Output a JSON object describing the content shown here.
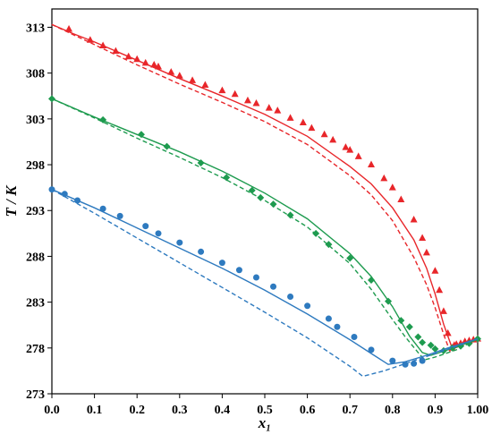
{
  "chart_data": {
    "type": "line",
    "title": "",
    "xlabel": "x₁",
    "ylabel": "T / K",
    "xlim": [
      0.0,
      1.0
    ],
    "ylim": [
      273,
      315
    ],
    "xticks": [
      "0.0",
      "0.1",
      "0.2",
      "0.3",
      "0.4",
      "0.5",
      "0.6",
      "0.7",
      "0.8",
      "0.9",
      "1.00"
    ],
    "yticks": [
      "273",
      "278",
      "283",
      "288",
      "293",
      "298",
      "303",
      "308",
      "313"
    ],
    "grid": false,
    "legend": "none",
    "series": [
      {
        "color": "#e8262a",
        "marker": "triangle",
        "points": {
          "x": [
            0.04,
            0.09,
            0.12,
            0.15,
            0.18,
            0.2,
            0.22,
            0.24,
            0.25,
            0.28,
            0.3,
            0.33,
            0.36,
            0.4,
            0.43,
            0.46,
            0.48,
            0.51,
            0.53,
            0.56,
            0.59,
            0.61,
            0.64,
            0.66,
            0.69,
            0.7,
            0.72,
            0.75,
            0.78,
            0.8,
            0.82,
            0.85,
            0.87,
            0.88,
            0.9,
            0.91,
            0.92,
            0.93,
            0.94,
            0.945,
            0.95,
            0.96,
            0.97,
            0.98,
            0.99,
            1.0
          ],
          "y": [
            312.8,
            311.6,
            311.0,
            310.4,
            309.8,
            309.5,
            309.1,
            308.9,
            308.7,
            308.1,
            307.7,
            307.2,
            306.7,
            306.1,
            305.7,
            305.0,
            304.7,
            304.2,
            303.9,
            303.1,
            302.6,
            302.0,
            301.3,
            300.7,
            299.9,
            299.6,
            298.9,
            298.0,
            296.5,
            295.5,
            294.2,
            292.0,
            290.0,
            288.4,
            286.4,
            284.3,
            282.0,
            279.6,
            278.0,
            278.3,
            278.4,
            278.5,
            278.7,
            278.8,
            278.9,
            279.0
          ]
        },
        "solid": {
          "x": [
            0.0,
            0.05,
            0.1,
            0.2,
            0.3,
            0.4,
            0.5,
            0.6,
            0.7,
            0.75,
            0.8,
            0.85,
            0.88,
            0.9,
            0.92,
            0.94,
            0.95,
            0.97,
            1.0
          ],
          "y": [
            313.3,
            312.3,
            311.4,
            309.4,
            307.4,
            305.5,
            303.5,
            301.1,
            297.8,
            295.9,
            293.3,
            289.8,
            286.7,
            283.9,
            280.6,
            278.0,
            278.3,
            278.6,
            279.0
          ]
        },
        "dashed": {
          "x": [
            0.0,
            0.05,
            0.1,
            0.2,
            0.3,
            0.4,
            0.5,
            0.6,
            0.7,
            0.75,
            0.8,
            0.85,
            0.88,
            0.9,
            0.92,
            0.935,
            0.95,
            0.97,
            1.0
          ],
          "y": [
            313.3,
            312.2,
            311.1,
            308.9,
            306.8,
            304.8,
            302.7,
            300.2,
            296.8,
            294.7,
            291.9,
            287.9,
            284.9,
            282.4,
            279.5,
            277.6,
            278.1,
            278.5,
            279.0
          ]
        }
      },
      {
        "color": "#1e9b4f",
        "marker": "diamond",
        "points": {
          "x": [
            0.0,
            0.12,
            0.21,
            0.27,
            0.35,
            0.41,
            0.47,
            0.49,
            0.52,
            0.56,
            0.62,
            0.65,
            0.7,
            0.75,
            0.79,
            0.82,
            0.84,
            0.86,
            0.87,
            0.89,
            0.9,
            0.92,
            0.94,
            0.96,
            0.98,
            1.0
          ],
          "y": [
            305.2,
            302.9,
            301.3,
            300.0,
            298.2,
            296.6,
            295.2,
            294.4,
            293.7,
            292.5,
            290.5,
            289.3,
            287.8,
            285.4,
            283.1,
            281.0,
            280.3,
            279.2,
            278.6,
            278.3,
            277.9,
            277.7,
            278.0,
            278.2,
            278.5,
            279.0
          ]
        },
        "solid": {
          "x": [
            0.0,
            0.1,
            0.2,
            0.3,
            0.4,
            0.5,
            0.6,
            0.7,
            0.75,
            0.8,
            0.84,
            0.87,
            0.89,
            0.91,
            0.95,
            1.0
          ],
          "y": [
            305.2,
            303.2,
            301.3,
            299.4,
            297.3,
            294.9,
            292.1,
            288.3,
            285.8,
            282.5,
            279.3,
            277.5,
            277.2,
            277.5,
            278.1,
            279.0
          ]
        },
        "dashed": {
          "x": [
            0.0,
            0.1,
            0.2,
            0.3,
            0.4,
            0.5,
            0.6,
            0.7,
            0.75,
            0.8,
            0.83,
            0.86,
            0.875,
            0.9,
            0.95,
            1.0
          ],
          "y": [
            305.2,
            303.1,
            300.9,
            298.8,
            296.6,
            294.1,
            291.2,
            287.2,
            284.4,
            281.1,
            279.2,
            277.5,
            276.7,
            277.0,
            277.8,
            279.0
          ]
        }
      },
      {
        "color": "#2e7abf",
        "marker": "circle",
        "points": {
          "x": [
            0.0,
            0.03,
            0.06,
            0.12,
            0.16,
            0.22,
            0.25,
            0.3,
            0.35,
            0.4,
            0.44,
            0.48,
            0.52,
            0.56,
            0.6,
            0.65,
            0.67,
            0.71,
            0.75,
            0.8,
            0.83,
            0.85,
            0.87
          ],
          "y": [
            295.3,
            294.8,
            294.1,
            293.2,
            292.4,
            291.3,
            290.5,
            289.5,
            288.5,
            287.3,
            286.5,
            285.7,
            284.7,
            283.6,
            282.6,
            281.2,
            280.3,
            279.2,
            277.8,
            276.6,
            276.2,
            276.3,
            276.6
          ]
        },
        "solid": {
          "x": [
            0.0,
            0.1,
            0.2,
            0.3,
            0.4,
            0.5,
            0.6,
            0.7,
            0.75,
            0.79,
            0.83,
            0.88,
            0.93,
            1.0
          ],
          "y": [
            295.3,
            293.3,
            291.1,
            288.9,
            286.7,
            284.3,
            281.7,
            278.9,
            277.4,
            276.2,
            276.5,
            277.2,
            278.0,
            279.0
          ]
        },
        "dashed": {
          "x": [
            0.0,
            0.1,
            0.2,
            0.3,
            0.4,
            0.5,
            0.6,
            0.7,
            0.73,
            0.78,
            0.85,
            0.92,
            1.0
          ],
          "y": [
            295.3,
            292.7,
            290.0,
            287.3,
            284.6,
            281.9,
            279.1,
            276.0,
            274.9,
            275.5,
            276.6,
            277.7,
            279.0
          ]
        }
      }
    ]
  }
}
